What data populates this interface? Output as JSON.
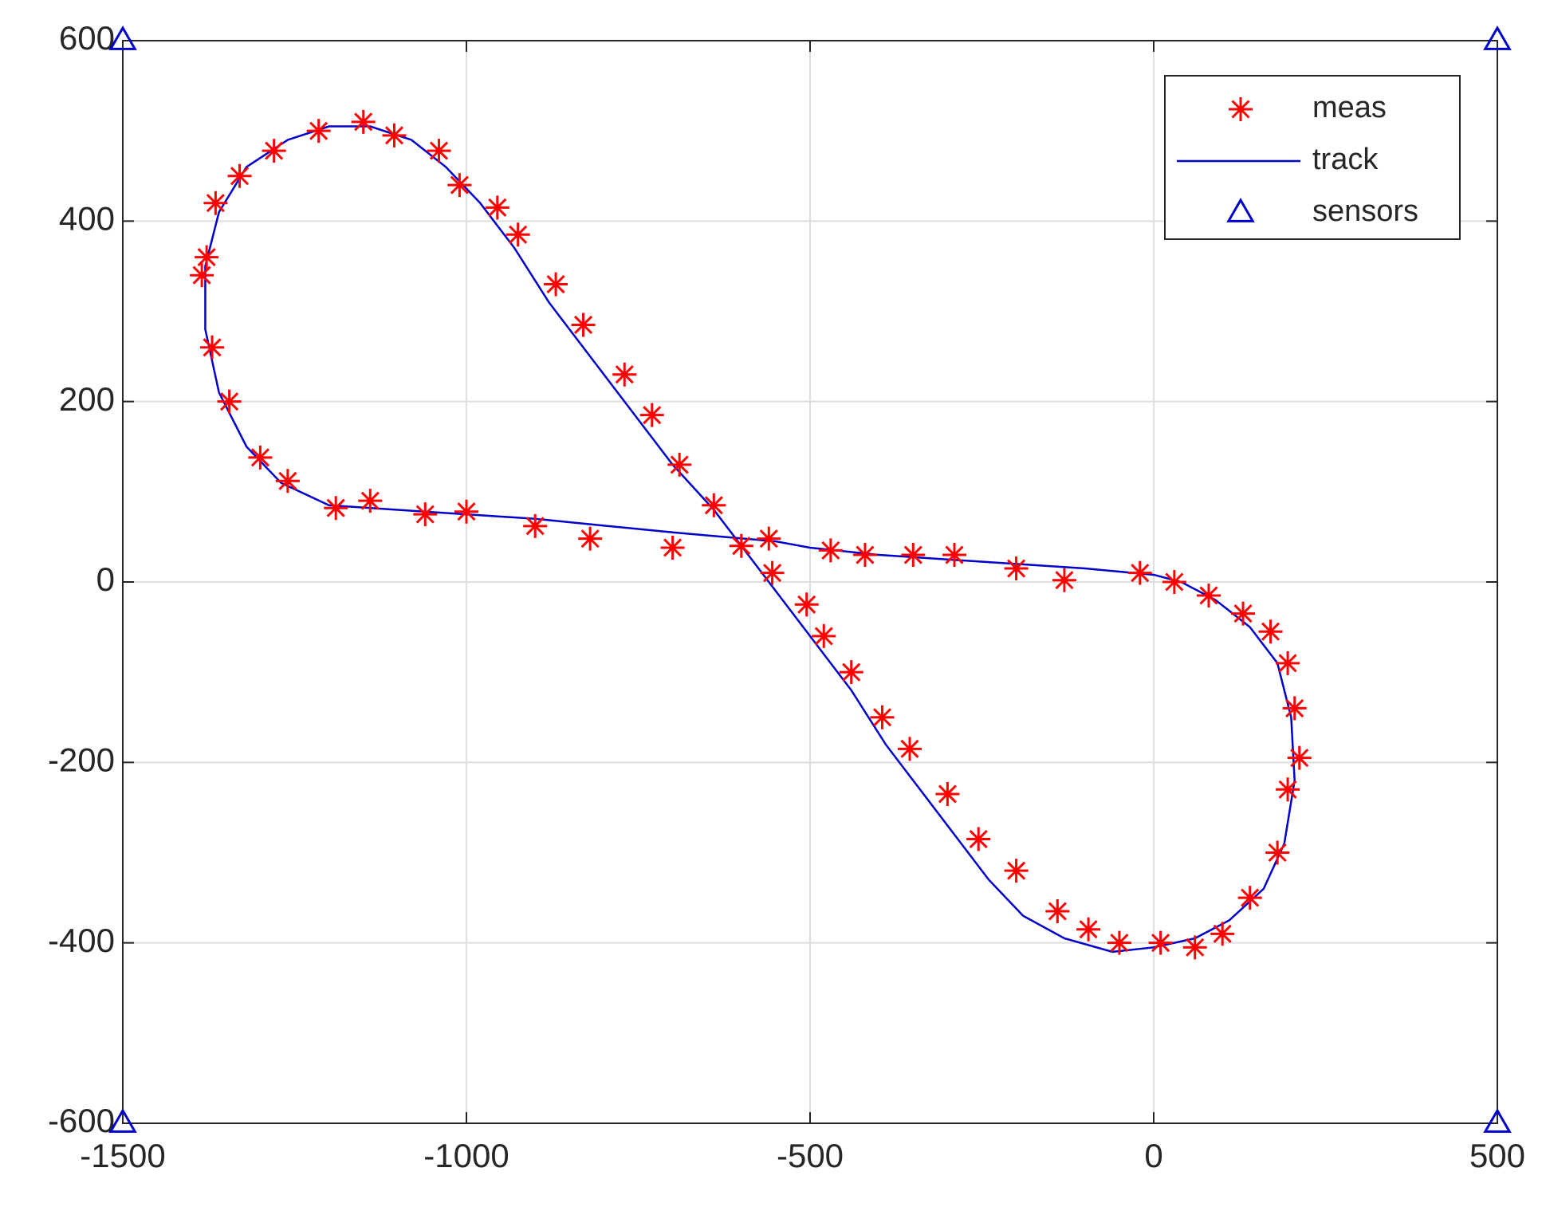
{
  "chart_data": {
    "type": "scatter",
    "xlim": [
      -1500,
      500
    ],
    "ylim": [
      -600,
      600
    ],
    "xticks": [
      -1500,
      -1000,
      -500,
      0,
      500
    ],
    "yticks": [
      -600,
      -400,
      -200,
      0,
      200,
      400,
      600
    ],
    "grid": true,
    "legend": "northeast",
    "series": [
      {
        "name": "meas",
        "color": "#ff0000",
        "style": "star",
        "x": [
          -560,
          -700,
          -820,
          -900,
          -1000,
          -1060,
          -1140,
          -1190,
          -1260,
          -1300,
          -1345,
          -1370,
          -1385,
          -1378,
          -1365,
          -1330,
          -1280,
          -1215,
          -1150,
          -1105,
          -1040,
          -1010,
          -955,
          -925,
          -870,
          -830,
          -770,
          -730,
          -690,
          -640,
          -600,
          -555,
          -505,
          -480,
          -440,
          -395,
          -355,
          -300,
          -255,
          -200,
          -140,
          -95,
          -50,
          10,
          60,
          100,
          140,
          180,
          195,
          212,
          205,
          195,
          170,
          130,
          80,
          30,
          -20,
          -130,
          -200,
          -290,
          -350,
          -420,
          -470
        ],
        "y": [
          48,
          38,
          48,
          62,
          78,
          75,
          90,
          82,
          112,
          138,
          200,
          260,
          340,
          360,
          420,
          450,
          478,
          500,
          510,
          495,
          478,
          440,
          415,
          385,
          330,
          285,
          230,
          185,
          130,
          85,
          40,
          10,
          -25,
          -60,
          -100,
          -150,
          -185,
          -235,
          -285,
          -320,
          -365,
          -385,
          -400,
          -400,
          -405,
          -390,
          -350,
          -300,
          -230,
          -195,
          -140,
          -90,
          -55,
          -35,
          -15,
          0,
          10,
          2,
          15,
          30,
          30,
          30,
          35
        ]
      },
      {
        "name": "track",
        "color": "#0000cc",
        "style": "line",
        "x": [
          -550,
          -700,
          -900,
          -1100,
          -1200,
          -1270,
          -1320,
          -1360,
          -1380,
          -1380,
          -1360,
          -1320,
          -1260,
          -1200,
          -1140,
          -1080,
          -1030,
          -980,
          -930,
          -880,
          -820,
          -760,
          -700,
          -640,
          -590,
          -540,
          -490,
          -440,
          -390,
          -340,
          -290,
          -240,
          -190,
          -130,
          -60,
          0,
          60,
          110,
          160,
          190,
          205,
          200,
          180,
          140,
          90,
          40,
          0,
          -100,
          -200,
          -300,
          -400,
          -500,
          -550
        ],
        "y": [
          45,
          55,
          70,
          80,
          85,
          110,
          150,
          210,
          280,
          350,
          410,
          460,
          490,
          505,
          505,
          490,
          460,
          420,
          370,
          310,
          250,
          190,
          130,
          80,
          30,
          -20,
          -70,
          -120,
          -180,
          -230,
          -280,
          -330,
          -370,
          -395,
          -410,
          -405,
          -395,
          -375,
          -340,
          -290,
          -220,
          -150,
          -90,
          -50,
          -20,
          0,
          8,
          15,
          20,
          25,
          30,
          38,
          45
        ]
      },
      {
        "name": "sensors",
        "color": "#0000cc",
        "style": "triangle",
        "x": [
          -1500,
          500,
          -1500,
          500
        ],
        "y": [
          600,
          600,
          -600,
          -600
        ]
      }
    ]
  }
}
